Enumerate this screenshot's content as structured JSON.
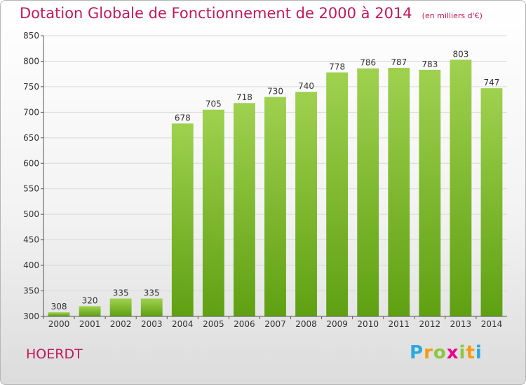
{
  "header": {
    "title": "Dotation Globale de Fonctionnement de 2000 à 2014",
    "unit": "(en milliers d'€)"
  },
  "commune": "HOERDT",
  "logo": {
    "text": "Proxiti",
    "letters": [
      "P",
      "r",
      "o",
      "x",
      "i",
      "t",
      "i"
    ],
    "colors": [
      "#29a9e0",
      "#f39c12",
      "#8dc63f",
      "#ec008c",
      "#8dc63f",
      "#f39c12",
      "#29a9e0"
    ]
  },
  "colors": {
    "title": "#c2185b",
    "bar_light": "#9fd14f",
    "bar_dark": "#5fa012",
    "grid": "#d9d9d9",
    "axis": "#555555"
  },
  "chart_data": {
    "type": "bar",
    "title": "Dotation Globale de Fonctionnement de 2000 à 2014",
    "subtitle": "(en milliers d'€)",
    "categories": [
      "2000",
      "2001",
      "2002",
      "2003",
      "2004",
      "2005",
      "2006",
      "2007",
      "2008",
      "2009",
      "2010",
      "2011",
      "2012",
      "2013",
      "2014"
    ],
    "values": [
      308,
      320,
      335,
      335,
      678,
      705,
      718,
      730,
      740,
      778,
      786,
      787,
      783,
      803,
      747
    ],
    "xlabel": "",
    "ylabel": "",
    "ylim": [
      300,
      850
    ],
    "yticks": [
      300,
      350,
      400,
      450,
      500,
      550,
      600,
      650,
      700,
      750,
      800,
      850
    ],
    "grid": true,
    "data_labels": true
  }
}
